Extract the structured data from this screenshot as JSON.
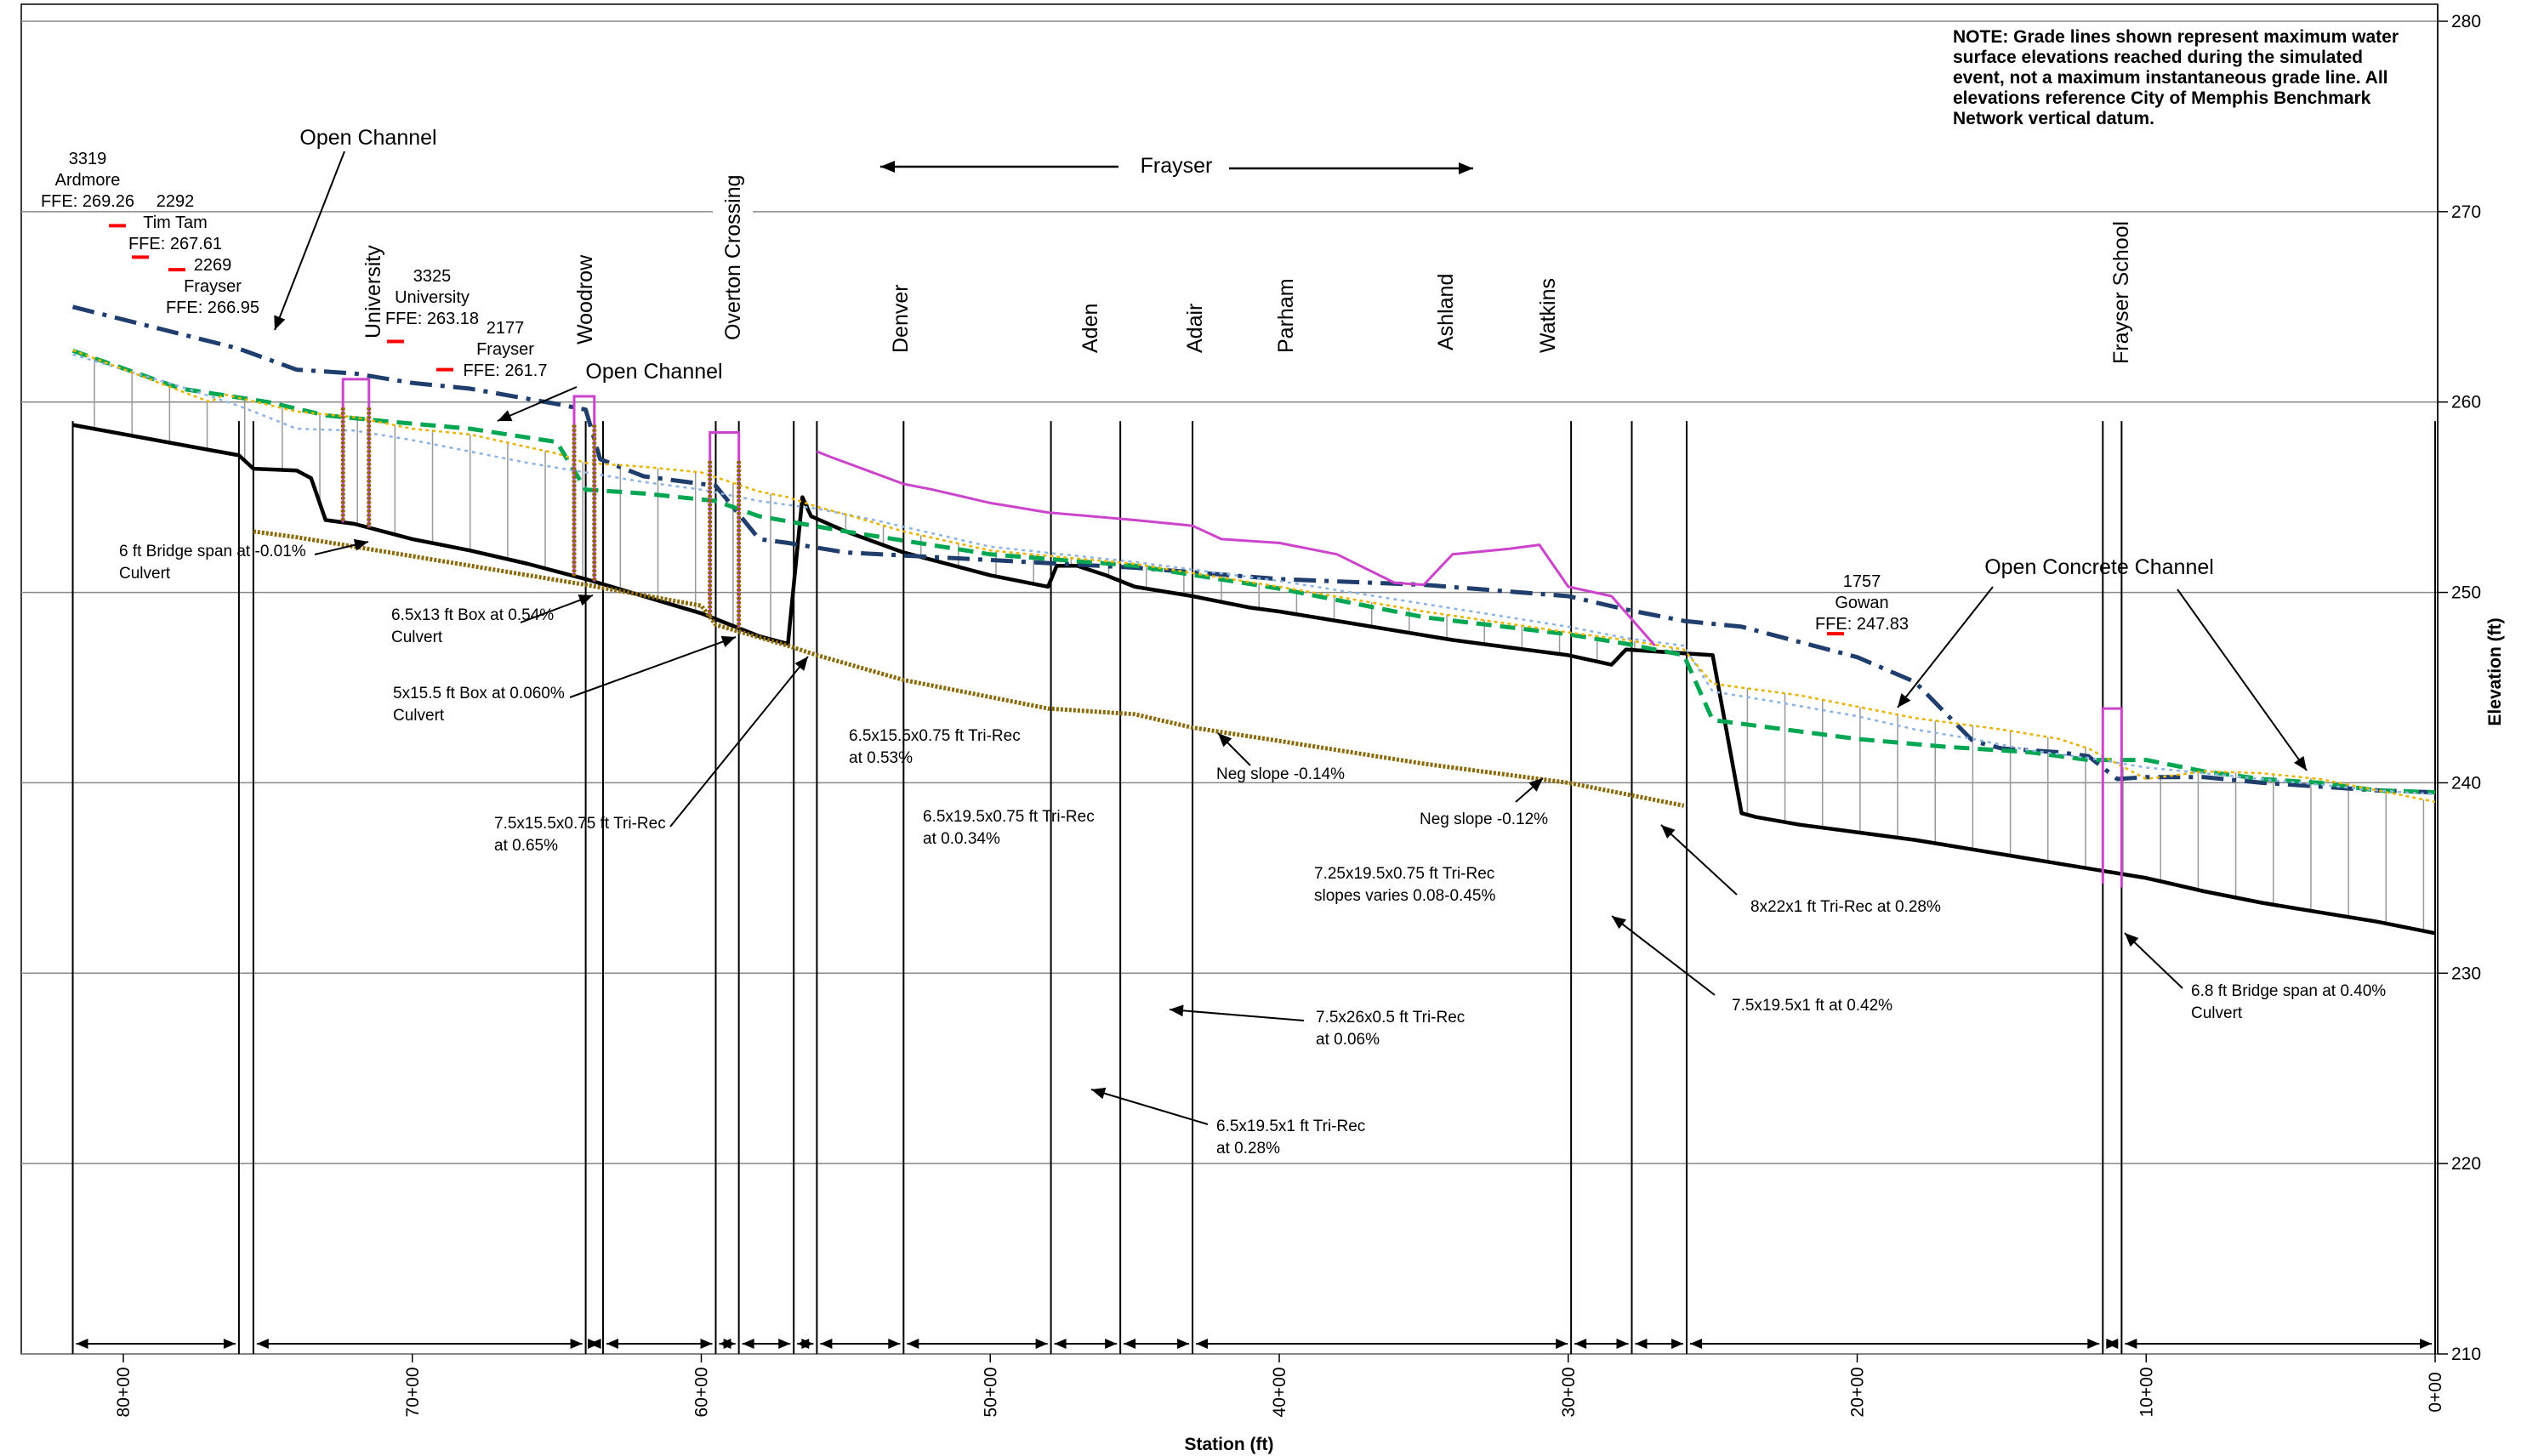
{
  "chart_data": {
    "type": "line",
    "title": "",
    "xlabel": "Station (ft)",
    "ylabel": "Elevation (ft)",
    "xlim": [
      8200,
      0
    ],
    "ylim": [
      210,
      280
    ],
    "x_ticks": [
      {
        "x": 8000,
        "label": "80+00"
      },
      {
        "x": 7000,
        "label": "70+00"
      },
      {
        "x": 6000,
        "label": "60+00"
      },
      {
        "x": 5000,
        "label": "50+00"
      },
      {
        "x": 4000,
        "label": "40+00"
      },
      {
        "x": 3000,
        "label": "30+00"
      },
      {
        "x": 2000,
        "label": "20+00"
      },
      {
        "x": 1000,
        "label": "10+00"
      },
      {
        "x": 0,
        "label": "0+00"
      }
    ],
    "y_ticks": [
      {
        "y": 280,
        "label": "280"
      },
      {
        "y": 270,
        "label": "270"
      },
      {
        "y": 260,
        "label": "260"
      },
      {
        "y": 250,
        "label": "250"
      },
      {
        "y": 240,
        "label": "240"
      },
      {
        "y": 230,
        "label": "230"
      },
      {
        "y": 220,
        "label": "220"
      },
      {
        "y": 210,
        "label": "210"
      }
    ],
    "grid": "horizontal",
    "note": "NOTE: Grade lines shown represent maximum water surface elevations reached during the simulated event, not a maximum instantaneous grade line. All elevations  reference City of Memphis Benchmark Network vertical datum.",
    "frayser_label": "Frayser",
    "series": [
      {
        "color": "#000000",
        "x": [
          8175,
          7600,
          7550,
          7400,
          7350,
          7300,
          7200,
          7100,
          7000,
          6800,
          6600,
          6400,
          6200,
          6000,
          5950,
          5900,
          5800,
          5700,
          5650,
          5620,
          5500,
          5300,
          5000,
          4800,
          4770,
          4700,
          4600,
          4500,
          4300,
          4200,
          4100,
          4000,
          3800,
          3600,
          3400,
          3200,
          3000,
          2850,
          2800,
          2500,
          2400,
          2350,
          2200,
          2000,
          1800,
          1600,
          1400,
          1200,
          1000,
          800,
          600,
          400,
          200,
          0
        ],
        "y": [
          258.8,
          257.2,
          256.5,
          256.4,
          256.0,
          253.8,
          253.6,
          253.2,
          252.8,
          252.2,
          251.5,
          250.7,
          249.8,
          248.9,
          248.6,
          248.3,
          247.7,
          247.3,
          255.0,
          254.0,
          253.2,
          252.1,
          250.9,
          250.3,
          251.4,
          251.4,
          250.9,
          250.3,
          249.8,
          249.5,
          249.2,
          249.0,
          248.5,
          248.0,
          247.5,
          247.1,
          246.7,
          246.2,
          247.0,
          246.7,
          238.4,
          238.2,
          237.8,
          237.4,
          237.0,
          236.5,
          236.0,
          235.5,
          235.0,
          234.3,
          233.7,
          233.2,
          232.7,
          232.1
        ]
      },
      {
        "color": "#1f3e6e",
        "x": [
          8175,
          7600,
          7400,
          7200,
          7000,
          6800,
          6500,
          6400,
          6350,
          6200,
          5950,
          5800,
          5700,
          5500,
          5000,
          4500,
          4000,
          3500,
          3000,
          2800,
          2600,
          2400,
          2200,
          2000,
          1800,
          1600,
          1500,
          1300,
          1200,
          1100,
          1000,
          800,
          600,
          400,
          200,
          0
        ],
        "y": [
          265.0,
          262.8,
          261.7,
          261.5,
          261.0,
          260.7,
          259.9,
          259.6,
          257.0,
          256.1,
          255.6,
          252.8,
          252.6,
          252.1,
          251.7,
          251.3,
          250.7,
          250.4,
          249.8,
          249.1,
          248.5,
          248.2,
          247.4,
          246.6,
          245.3,
          242.2,
          241.8,
          241.6,
          241.4,
          240.2,
          240.3,
          240.3,
          240.0,
          239.8,
          239.6,
          239.5
        ]
      },
      {
        "color": "#00a651",
        "x": [
          8175,
          7800,
          7500,
          7300,
          7100,
          6800,
          6500,
          6400,
          6200,
          5950,
          5800,
          5500,
          5000,
          4500,
          4000,
          3500,
          3000,
          2800,
          2600,
          2500,
          2300,
          2000,
          1700,
          1400,
          1200,
          1000,
          800,
          600,
          400,
          200,
          0
        ],
        "y": [
          262.7,
          260.7,
          260.0,
          259.3,
          259.0,
          258.6,
          257.9,
          255.4,
          255.2,
          254.8,
          254.0,
          253.2,
          252.0,
          251.4,
          250.2,
          248.7,
          247.8,
          247.3,
          246.7,
          243.3,
          242.9,
          242.3,
          241.9,
          241.6,
          241.2,
          241.2,
          240.6,
          240.2,
          240.0,
          239.6,
          239.5
        ]
      },
      {
        "color": "#8db3e2",
        "x": [
          8175,
          7800,
          7600,
          7500,
          7400,
          7200,
          7000,
          6800,
          6600,
          6400,
          6200,
          6000,
          5800,
          5600,
          5400,
          5000,
          4500,
          4000,
          3500,
          3000,
          2800,
          2600,
          2500,
          2300,
          2000,
          1800,
          1600,
          1400,
          1200,
          1000,
          800,
          600,
          400,
          200,
          0
        ],
        "y": [
          262.5,
          260.8,
          259.8,
          259.2,
          258.6,
          258.5,
          258.0,
          257.4,
          256.8,
          256.3,
          255.8,
          255.4,
          254.8,
          254.4,
          253.8,
          252.4,
          251.6,
          250.6,
          249.4,
          248.2,
          247.6,
          247.2,
          244.8,
          244.3,
          243.5,
          242.8,
          242.3,
          241.7,
          241.3,
          240.8,
          240.5,
          240.2,
          239.9,
          239.6,
          239.4
        ]
      },
      {
        "color": "#e6b400",
        "x": [
          8175,
          8170,
          7700,
          7650,
          7400,
          7200,
          7100,
          7000,
          6800,
          6500,
          6400,
          6200,
          6000,
          5900,
          5800,
          5700,
          5600,
          5500,
          5300,
          5000,
          4500,
          4000,
          3500,
          3000,
          2800,
          2600,
          2500,
          2300,
          2200,
          2000,
          1800,
          1600,
          1500,
          1300,
          1200,
          1100,
          1000,
          800,
          600,
          400,
          200,
          0
        ],
        "y": [
          262.7,
          262.7,
          260.0,
          260.4,
          259.5,
          259.2,
          258.9,
          258.6,
          258.3,
          257.3,
          256.8,
          256.6,
          256.3,
          255.8,
          255.3,
          255.0,
          254.5,
          254.1,
          253.2,
          252.2,
          251.5,
          250.3,
          249.0,
          247.9,
          247.5,
          247.0,
          245.2,
          244.8,
          244.6,
          244.0,
          243.4,
          243.0,
          242.8,
          242.3,
          241.8,
          241.0,
          240.2,
          240.6,
          240.5,
          240.2,
          239.6,
          239.0
        ]
      },
      {
        "color": "#cc44cc",
        "x": [
          5600,
          5550,
          5300,
          5200,
          5000,
          4800,
          4500,
          4300,
          4200,
          4000,
          3800,
          3600,
          3500,
          3400,
          3200,
          3100,
          3000,
          2850,
          2700
        ],
        "y": [
          257.4,
          257.1,
          255.7,
          255.4,
          254.7,
          254.2,
          253.8,
          253.5,
          252.8,
          252.6,
          252.0,
          250.5,
          250.4,
          252.0,
          252.3,
          252.5,
          250.3,
          249.8,
          247.2
        ]
      }
    ],
    "structures": [
      {
        "x": [
          7240,
          7150
        ],
        "top": 261.2
      },
      {
        "x": [
          6440,
          6370
        ],
        "top": 260.3
      },
      {
        "x": [
          5970,
          5870
        ],
        "top": 258.4
      },
      {
        "x": 1150,
        "top": 243.9
      }
    ],
    "houses": [
      {
        "label_lines": [
          "3319",
          "Ardmore",
          "FFE: 269.26"
        ],
        "station": 7920,
        "elev": 269.26
      },
      {
        "label_lines": [
          "2292",
          "Tim Tam",
          "FFE: 267.61"
        ],
        "station": 7770,
        "elev": 267.61
      },
      {
        "label_lines": [
          "2269",
          "Frayser",
          "FFE: 266.95"
        ],
        "station": 7660,
        "elev": 266.95
      },
      {
        "label_lines": [
          "3325",
          "University",
          "FFE: 263.18"
        ],
        "station": 7080,
        "elev": 263.18
      },
      {
        "label_lines": [
          "2177",
          "Frayser",
          "FFE: 261.7"
        ],
        "station": 6730,
        "elev": 261.7
      },
      {
        "label_lines": [
          "1757",
          "Gowan",
          "FFE: 247.83"
        ],
        "station": 2070,
        "elev": 247.83
      }
    ],
    "streets": [
      "University",
      "Woodrow",
      "Overton Crossing",
      "Denver",
      "Aden",
      "Adair",
      "Parham",
      "Ashland",
      "Watkins",
      "Frayser School"
    ],
    "channel_labels": [
      "Open Channel",
      "Open Channel",
      "Open Concrete Channel"
    ],
    "section_labels": [
      {
        "lines": [
          "6 ft Bridge span at -0.01%",
          "Culvert"
        ]
      },
      {
        "lines": [
          "6.5x13 ft Box at 0.54%",
          "Culvert"
        ]
      },
      {
        "lines": [
          "5x15.5 ft Box at 0.060%",
          "Culvert"
        ]
      },
      {
        "lines": [
          "7.5x15.5x0.75 ft Tri-Rec",
          "at 0.65%"
        ]
      },
      {
        "lines": [
          "6.5x15.5x0.75 ft Tri-Rec",
          "at 0.53%"
        ]
      },
      {
        "lines": [
          "6.5x19.5x0.75 ft Tri-Rec",
          "at 0.0.34%"
        ]
      },
      {
        "lines": [
          "Neg slope -0.14%"
        ]
      },
      {
        "lines": [
          "Neg slope -0.12%"
        ]
      },
      {
        "lines": [
          "7.25x19.5x0.75 ft Tri-Rec",
          "slopes varies 0.08-0.45%"
        ]
      },
      {
        "lines": [
          "8x22x1 ft Tri-Rec at 0.28%"
        ]
      },
      {
        "lines": [
          "7.5x19.5x1 ft at 0.42%"
        ]
      },
      {
        "lines": [
          "7.5x26x0.5 ft Tri-Rec",
          "at 0.06%"
        ]
      },
      {
        "lines": [
          "6.5x19.5x1 ft Tri-Rec",
          "at 0.28%"
        ]
      },
      {
        "lines": [
          "6.8 ft Bridge span at 0.40%",
          "Culvert"
        ]
      }
    ]
  }
}
